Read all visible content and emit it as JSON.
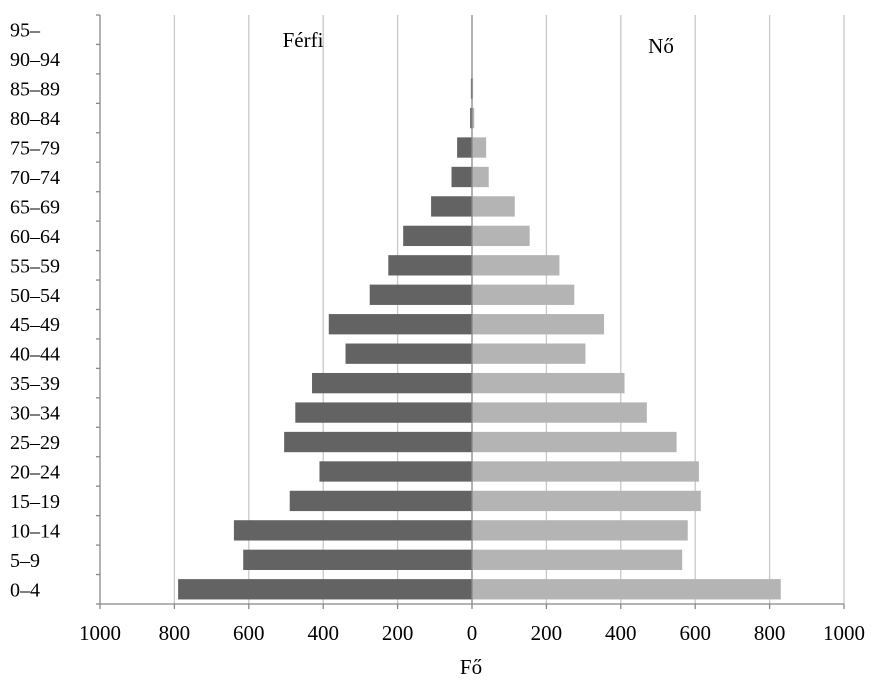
{
  "chart_data": {
    "type": "bar",
    "orientation": "horizontal",
    "subtype": "population-pyramid",
    "categories": [
      "0–4",
      "5–9",
      "10–14",
      "15–19",
      "20–24",
      "25–29",
      "30–34",
      "35–39",
      "40–44",
      "45–49",
      "50–54",
      "55–59",
      "60–64",
      "65–69",
      "70–74",
      "75–79",
      "80–84",
      "85–89",
      "90–94",
      "95–"
    ],
    "series": [
      {
        "name": "Férfi",
        "side": "left",
        "color": "#636363",
        "values": [
          790,
          615,
          640,
          490,
          410,
          505,
          475,
          430,
          340,
          385,
          275,
          225,
          185,
          110,
          55,
          40,
          5,
          3,
          0,
          0
        ]
      },
      {
        "name": "Nő",
        "side": "right",
        "color": "#b4b4b4",
        "values": [
          830,
          565,
          580,
          615,
          610,
          550,
          470,
          410,
          305,
          355,
          275,
          235,
          155,
          115,
          45,
          38,
          6,
          3,
          0,
          0
        ]
      }
    ],
    "xticks": [
      "1000",
      "800",
      "600",
      "400",
      "200",
      "0",
      "200",
      "400",
      "600",
      "800",
      "1000"
    ],
    "xlim": [
      -1000,
      1000
    ],
    "xlabel": "Fő",
    "ylabel": "",
    "grid": "vertical",
    "axis_color": "#888888",
    "grid_color": "#c8c8c8"
  }
}
